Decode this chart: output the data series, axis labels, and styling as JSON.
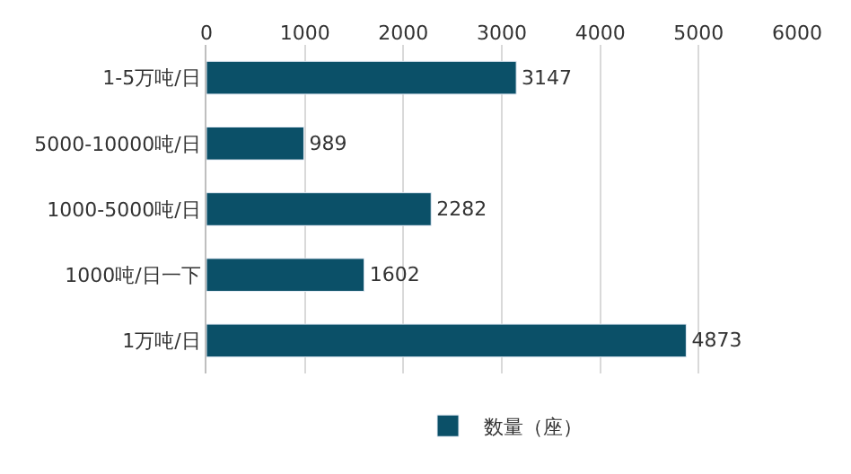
{
  "chart_data": {
    "type": "bar",
    "orientation": "horizontal",
    "categories": [
      "1-5万吨/日",
      "5000-10000吨/日",
      "1000-5000吨/日",
      "1000吨/日一下",
      "1万吨/日"
    ],
    "series": [
      {
        "name": "数量（座）",
        "color": "#0b5068",
        "values": [
          3147,
          989,
          2282,
          1602,
          4873
        ]
      }
    ],
    "xlim": [
      0,
      6000
    ],
    "xticks": [
      0,
      1000,
      2000,
      3000,
      4000,
      5000,
      6000
    ],
    "grid": "x",
    "legend": "bottom",
    "data_labels": true
  }
}
